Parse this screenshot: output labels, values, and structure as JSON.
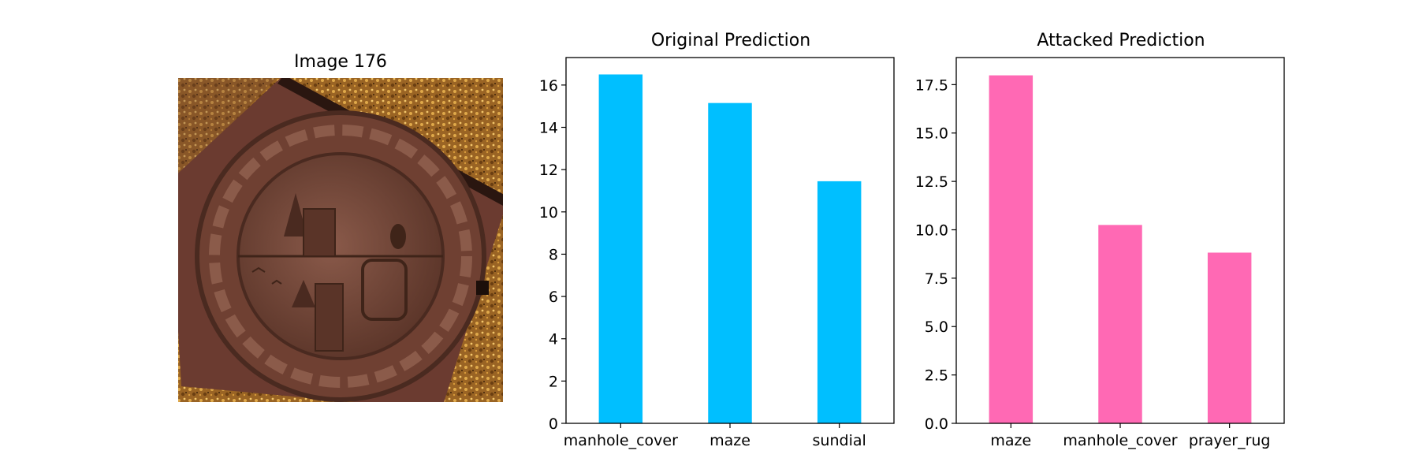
{
  "image_panel": {
    "title": "Image 176",
    "image_subject": "manhole-cover-photo"
  },
  "chart_data": [
    {
      "type": "bar",
      "title": "Original Prediction",
      "xlabel": "",
      "ylabel": "",
      "categories": [
        "manhole_cover",
        "maze",
        "sundial"
      ],
      "values": [
        16.5,
        15.15,
        11.45
      ],
      "ylim": [
        0,
        17.3
      ],
      "yticks": [
        0,
        2,
        4,
        6,
        8,
        10,
        12,
        14,
        16
      ],
      "ytick_labels": [
        "0",
        "2",
        "4",
        "6",
        "8",
        "10",
        "12",
        "14",
        "16"
      ],
      "color": "#00BFFF",
      "grid": false
    },
    {
      "type": "bar",
      "title": "Attacked Prediction",
      "xlabel": "",
      "ylabel": "",
      "categories": [
        "maze",
        "manhole_cover",
        "prayer_rug"
      ],
      "values": [
        17.98,
        10.25,
        8.82
      ],
      "ylim": [
        0,
        18.9
      ],
      "yticks": [
        0,
        2.5,
        5,
        7.5,
        10,
        12.5,
        15,
        17.5
      ],
      "ytick_labels": [
        "0.0",
        "2.5",
        "5.0",
        "7.5",
        "10.0",
        "12.5",
        "15.0",
        "17.5"
      ],
      "color": "#FF69B4",
      "grid": false
    }
  ]
}
